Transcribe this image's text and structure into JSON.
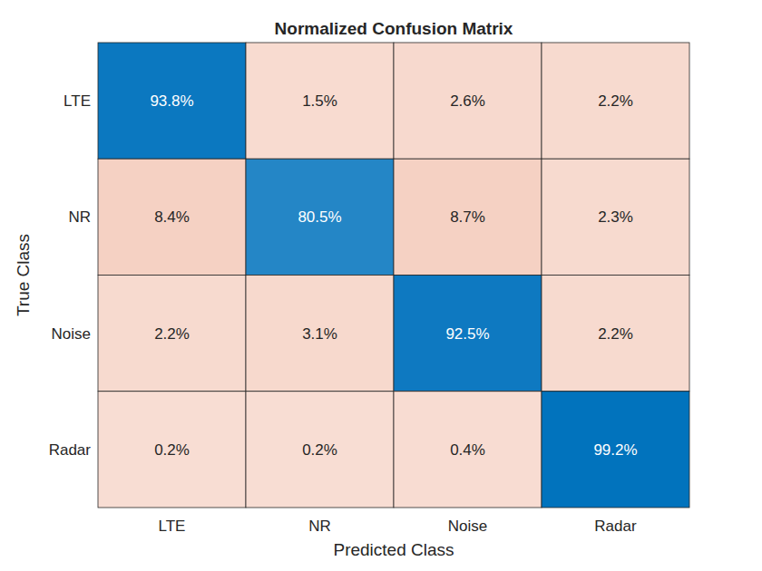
{
  "chart_data": {
    "type": "heatmap",
    "title": "Normalized Confusion Matrix",
    "x_label": "Predicted Class",
    "y_label": "True Class",
    "x_categories": [
      "LTE",
      "NR",
      "Noise",
      "Radar"
    ],
    "y_categories": [
      "LTE",
      "NR",
      "Noise",
      "Radar"
    ],
    "values": [
      [
        93.8,
        1.5,
        2.6,
        2.2
      ],
      [
        8.4,
        80.5,
        8.7,
        2.3
      ],
      [
        2.2,
        3.1,
        92.5,
        2.2
      ],
      [
        0.2,
        0.2,
        0.4,
        99.2
      ]
    ],
    "value_labels": [
      [
        "93.8%",
        "1.5%",
        "2.6%",
        "2.2%"
      ],
      [
        "8.4%",
        "80.5%",
        "8.7%",
        "2.3%"
      ],
      [
        "2.2%",
        "3.1%",
        "92.5%",
        "2.2%"
      ],
      [
        "0.2%",
        "0.2%",
        "0.4%",
        "99.2%"
      ]
    ],
    "data_labels": true
  }
}
